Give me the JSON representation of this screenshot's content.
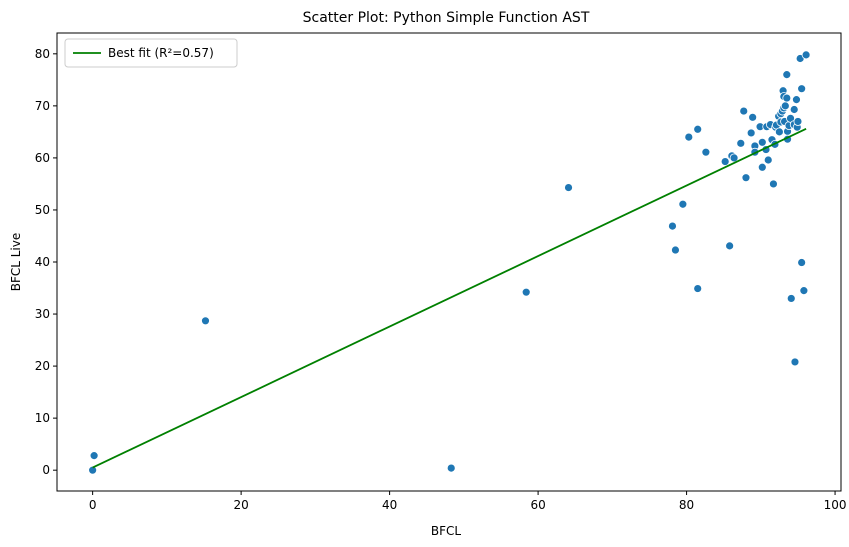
{
  "chart_data": {
    "type": "scatter",
    "title": "Scatter Plot: Python Simple Function AST",
    "xlabel": "BFCL",
    "ylabel": "BFCL Live",
    "xlim": [
      -4.8,
      100.8
    ],
    "ylim": [
      -4,
      84
    ],
    "xticks": [
      0,
      20,
      40,
      60,
      80,
      100
    ],
    "yticks": [
      0,
      10,
      20,
      30,
      40,
      50,
      60,
      70,
      80
    ],
    "grid": false,
    "legend": {
      "placement": "top-left",
      "entries": [
        "Best fit (R²=0.57)"
      ]
    },
    "colors": {
      "points": "#1f77b4",
      "fit_line": "#008000"
    },
    "series": [
      {
        "kind": "points",
        "points": [
          [
            0,
            0
          ],
          [
            0.2,
            2.8
          ],
          [
            15.2,
            28.7
          ],
          [
            48.3,
            0.4
          ],
          [
            58.4,
            34.2
          ],
          [
            64.1,
            54.3
          ],
          [
            78.1,
            46.9
          ],
          [
            78.5,
            42.3
          ],
          [
            79.5,
            51.1
          ],
          [
            80.3,
            64.0
          ],
          [
            81.5,
            65.5
          ],
          [
            81.5,
            34.9
          ],
          [
            82.6,
            61.1
          ],
          [
            85.2,
            59.3
          ],
          [
            85.8,
            43.1
          ],
          [
            86.1,
            60.4
          ],
          [
            86.4,
            60.0
          ],
          [
            87.3,
            62.8
          ],
          [
            87.7,
            69.0
          ],
          [
            88.0,
            56.2
          ],
          [
            88.7,
            64.8
          ],
          [
            88.9,
            67.8
          ],
          [
            89.2,
            62.3
          ],
          [
            89.2,
            61.1
          ],
          [
            89.9,
            66.0
          ],
          [
            90.2,
            58.2
          ],
          [
            90.2,
            63.0
          ],
          [
            90.7,
            61.6
          ],
          [
            90.8,
            66.0
          ],
          [
            91.0,
            59.6
          ],
          [
            91.3,
            66.4
          ],
          [
            91.5,
            63.5
          ],
          [
            91.7,
            55.0
          ],
          [
            91.9,
            62.6
          ],
          [
            92.0,
            65.9
          ],
          [
            92.1,
            66.3
          ],
          [
            92.4,
            68.0
          ],
          [
            92.5,
            65.0
          ],
          [
            92.7,
            68.5
          ],
          [
            92.7,
            66.9
          ],
          [
            92.9,
            69.0
          ],
          [
            93.0,
            72.9
          ],
          [
            93.1,
            71.8
          ],
          [
            93.1,
            69.6
          ],
          [
            93.2,
            67.0
          ],
          [
            93.3,
            70.0
          ],
          [
            93.5,
            76.0
          ],
          [
            93.5,
            71.5
          ],
          [
            93.6,
            65.1
          ],
          [
            93.6,
            63.6
          ],
          [
            93.8,
            66.2
          ],
          [
            94.0,
            67.6
          ],
          [
            94.1,
            33.0
          ],
          [
            94.5,
            66.4
          ],
          [
            94.5,
            69.3
          ],
          [
            94.6,
            20.8
          ],
          [
            94.8,
            71.2
          ],
          [
            94.9,
            65.9
          ],
          [
            95.0,
            67.0
          ],
          [
            95.3,
            79.1
          ],
          [
            95.5,
            73.3
          ],
          [
            95.5,
            39.9
          ],
          [
            95.8,
            34.5
          ],
          [
            96.1,
            79.8
          ]
        ]
      },
      {
        "kind": "fit_line",
        "name": "Best fit (R²=0.57)",
        "points": [
          [
            0,
            0.5
          ],
          [
            96.1,
            65.6
          ]
        ]
      }
    ]
  }
}
